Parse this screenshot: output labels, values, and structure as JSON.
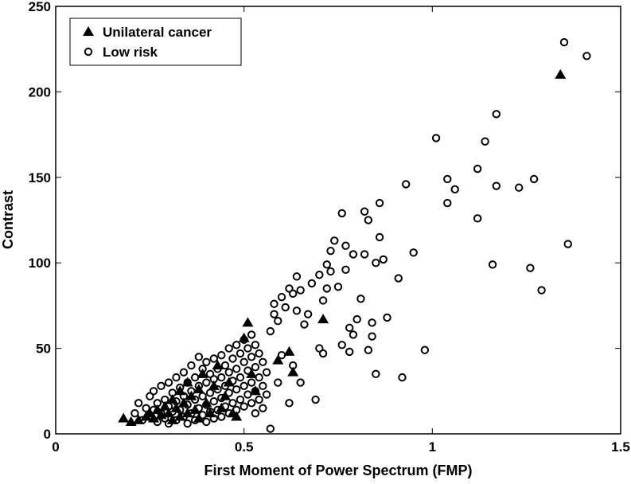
{
  "chart_data": {
    "type": "scatter",
    "title": "",
    "xlabel": "First Moment of Power Spectrum (FMP)",
    "ylabel": "Contrast",
    "xlim": [
      0,
      1.5
    ],
    "ylim": [
      0,
      250
    ],
    "xticks": [
      "0",
      "0.5",
      "1",
      "1.5"
    ],
    "yticks": [
      "0",
      "50",
      "100",
      "150",
      "200",
      "250"
    ],
    "grid": false,
    "legend_position": "top-left",
    "series": [
      {
        "name": "Unilateral cancer",
        "marker": "triangle",
        "color": "#000000",
        "points": [
          [
            0.18,
            9
          ],
          [
            0.2,
            7
          ],
          [
            0.22,
            8
          ],
          [
            0.24,
            10
          ],
          [
            0.25,
            12
          ],
          [
            0.26,
            9
          ],
          [
            0.27,
            14
          ],
          [
            0.28,
            11
          ],
          [
            0.29,
            16
          ],
          [
            0.3,
            12
          ],
          [
            0.31,
            8
          ],
          [
            0.31,
            20
          ],
          [
            0.32,
            15
          ],
          [
            0.33,
            25
          ],
          [
            0.33,
            10
          ],
          [
            0.34,
            18
          ],
          [
            0.35,
            12
          ],
          [
            0.35,
            30
          ],
          [
            0.36,
            22
          ],
          [
            0.37,
            14
          ],
          [
            0.38,
            26
          ],
          [
            0.38,
            9
          ],
          [
            0.39,
            35
          ],
          [
            0.4,
            18
          ],
          [
            0.41,
            12
          ],
          [
            0.42,
            28
          ],
          [
            0.43,
            40
          ],
          [
            0.44,
            15
          ],
          [
            0.45,
            22
          ],
          [
            0.46,
            30
          ],
          [
            0.47,
            12
          ],
          [
            0.48,
            10
          ],
          [
            0.5,
            56
          ],
          [
            0.51,
            65
          ],
          [
            0.52,
            35
          ],
          [
            0.53,
            25
          ],
          [
            0.59,
            43
          ],
          [
            0.62,
            48
          ],
          [
            0.63,
            36
          ],
          [
            0.71,
            67
          ],
          [
            1.34,
            210
          ]
        ]
      },
      {
        "name": "Low risk",
        "marker": "circle",
        "color": "#000000",
        "points": [
          [
            0.21,
            12
          ],
          [
            0.22,
            18
          ],
          [
            0.23,
            8
          ],
          [
            0.24,
            15
          ],
          [
            0.25,
            22
          ],
          [
            0.25,
            10
          ],
          [
            0.26,
            25
          ],
          [
            0.26,
            14
          ],
          [
            0.27,
            18
          ],
          [
            0.27,
            7
          ],
          [
            0.28,
            28
          ],
          [
            0.28,
            12
          ],
          [
            0.29,
            20
          ],
          [
            0.29,
            9
          ],
          [
            0.3,
            30
          ],
          [
            0.3,
            16
          ],
          [
            0.3,
            6
          ],
          [
            0.31,
            24
          ],
          [
            0.31,
            13
          ],
          [
            0.32,
            33
          ],
          [
            0.32,
            19
          ],
          [
            0.32,
            8
          ],
          [
            0.33,
            27
          ],
          [
            0.33,
            14
          ],
          [
            0.34,
            36
          ],
          [
            0.34,
            22
          ],
          [
            0.34,
            10
          ],
          [
            0.35,
            30
          ],
          [
            0.35,
            17
          ],
          [
            0.35,
            6
          ],
          [
            0.36,
            40
          ],
          [
            0.36,
            25
          ],
          [
            0.36,
            12
          ],
          [
            0.37,
            33
          ],
          [
            0.37,
            20
          ],
          [
            0.37,
            8
          ],
          [
            0.38,
            45
          ],
          [
            0.38,
            28
          ],
          [
            0.38,
            15
          ],
          [
            0.39,
            38
          ],
          [
            0.39,
            22
          ],
          [
            0.39,
            11
          ],
          [
            0.4,
            42
          ],
          [
            0.4,
            30
          ],
          [
            0.4,
            17
          ],
          [
            0.4,
            7
          ],
          [
            0.41,
            35
          ],
          [
            0.41,
            24
          ],
          [
            0.41,
            13
          ],
          [
            0.42,
            44
          ],
          [
            0.42,
            32
          ],
          [
            0.42,
            19
          ],
          [
            0.42,
            9
          ],
          [
            0.43,
            38
          ],
          [
            0.43,
            26
          ],
          [
            0.43,
            14
          ],
          [
            0.44,
            46
          ],
          [
            0.44,
            33
          ],
          [
            0.44,
            21
          ],
          [
            0.44,
            10
          ],
          [
            0.45,
            40
          ],
          [
            0.45,
            28
          ],
          [
            0.45,
            16
          ],
          [
            0.46,
            50
          ],
          [
            0.46,
            36
          ],
          [
            0.46,
            24
          ],
          [
            0.46,
            12
          ],
          [
            0.47,
            44
          ],
          [
            0.47,
            31
          ],
          [
            0.47,
            18
          ],
          [
            0.48,
            52
          ],
          [
            0.48,
            38
          ],
          [
            0.48,
            26
          ],
          [
            0.48,
            14
          ],
          [
            0.49,
            47
          ],
          [
            0.49,
            33
          ],
          [
            0.49,
            20
          ],
          [
            0.5,
            55
          ],
          [
            0.5,
            42
          ],
          [
            0.5,
            28
          ],
          [
            0.5,
            16
          ],
          [
            0.51,
            50
          ],
          [
            0.51,
            37
          ],
          [
            0.51,
            23
          ],
          [
            0.52,
            58
          ],
          [
            0.52,
            45
          ],
          [
            0.52,
            30
          ],
          [
            0.52,
            18
          ],
          [
            0.53,
            52
          ],
          [
            0.53,
            39
          ],
          [
            0.53,
            25
          ],
          [
            0.53,
            12
          ],
          [
            0.54,
            47
          ],
          [
            0.54,
            33
          ],
          [
            0.54,
            20
          ],
          [
            0.55,
            42
          ],
          [
            0.55,
            28
          ],
          [
            0.55,
            15
          ],
          [
            0.56,
            36
          ],
          [
            0.56,
            23
          ],
          [
            0.57,
            3
          ],
          [
            0.57,
            60
          ],
          [
            0.58,
            70
          ],
          [
            0.58,
            76
          ],
          [
            0.59,
            66
          ],
          [
            0.59,
            30
          ],
          [
            0.6,
            80
          ],
          [
            0.6,
            46
          ],
          [
            0.61,
            74
          ],
          [
            0.62,
            85
          ],
          [
            0.62,
            18
          ],
          [
            0.63,
            82
          ],
          [
            0.63,
            40
          ],
          [
            0.64,
            92
          ],
          [
            0.64,
            72
          ],
          [
            0.65,
            84
          ],
          [
            0.65,
            30
          ],
          [
            0.66,
            64
          ],
          [
            0.67,
            70
          ],
          [
            0.68,
            88
          ],
          [
            0.69,
            20
          ],
          [
            0.7,
            93
          ],
          [
            0.7,
            50
          ],
          [
            0.71,
            78
          ],
          [
            0.71,
            47
          ],
          [
            0.72,
            99
          ],
          [
            0.72,
            85
          ],
          [
            0.73,
            107
          ],
          [
            0.73,
            95
          ],
          [
            0.74,
            113
          ],
          [
            0.75,
            86
          ],
          [
            0.76,
            129
          ],
          [
            0.76,
            52
          ],
          [
            0.77,
            110
          ],
          [
            0.77,
            96
          ],
          [
            0.78,
            62
          ],
          [
            0.78,
            48
          ],
          [
            0.79,
            105
          ],
          [
            0.79,
            58
          ],
          [
            0.8,
            67
          ],
          [
            0.81,
            79
          ],
          [
            0.82,
            130
          ],
          [
            0.82,
            105
          ],
          [
            0.83,
            125
          ],
          [
            0.83,
            49
          ],
          [
            0.84,
            65
          ],
          [
            0.84,
            57
          ],
          [
            0.85,
            35
          ],
          [
            0.85,
            100
          ],
          [
            0.86,
            115
          ],
          [
            0.86,
            135
          ],
          [
            0.87,
            102
          ],
          [
            0.88,
            68
          ],
          [
            0.91,
            91
          ],
          [
            0.92,
            33
          ],
          [
            0.93,
            146
          ],
          [
            0.95,
            106
          ],
          [
            0.98,
            49
          ],
          [
            1.01,
            173
          ],
          [
            1.04,
            149
          ],
          [
            1.04,
            135
          ],
          [
            1.06,
            143
          ],
          [
            1.12,
            155
          ],
          [
            1.12,
            126
          ],
          [
            1.14,
            171
          ],
          [
            1.16,
            99
          ],
          [
            1.17,
            145
          ],
          [
            1.17,
            187
          ],
          [
            1.23,
            144
          ],
          [
            1.26,
            97
          ],
          [
            1.27,
            149
          ],
          [
            1.29,
            84
          ],
          [
            1.35,
            229
          ],
          [
            1.36,
            111
          ],
          [
            1.41,
            221
          ]
        ]
      }
    ]
  }
}
